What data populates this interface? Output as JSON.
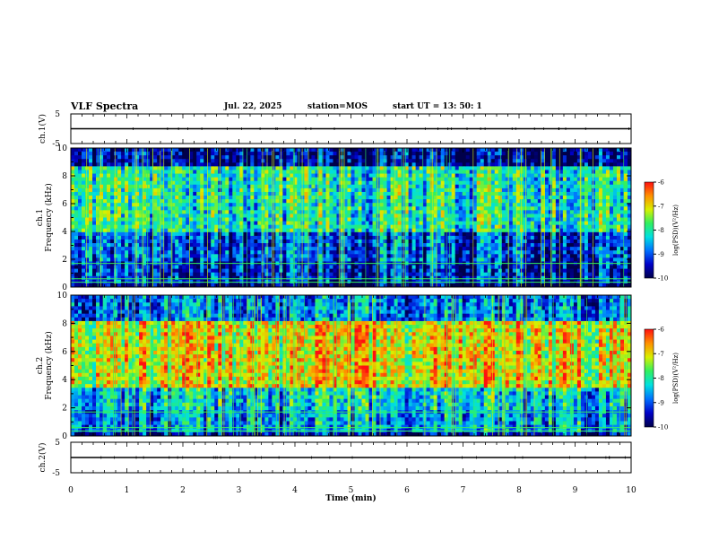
{
  "header": {
    "title": "VLF Spectra",
    "date": "Jul. 22, 2025",
    "station": "station=MOS",
    "start": "start UT = 13: 50: 1"
  },
  "colors": {
    "colormap": [
      "#00004a",
      "#0000c8",
      "#0070ff",
      "#00e0e0",
      "#30f060",
      "#d8f000",
      "#ff9000",
      "#ff1010",
      "#ffffff"
    ]
  },
  "chart_data": [
    {
      "type": "line",
      "panel": "waveform-ch1",
      "ylabel": "ch.1(V)",
      "ylim": [
        -5,
        5
      ],
      "yticks": [
        "5",
        "-5"
      ],
      "x": [
        0,
        10
      ],
      "values": [
        0,
        0
      ]
    },
    {
      "type": "heatmap",
      "panel": "spectrogram-ch1",
      "ylabel": "ch.1\nFrequency (kHz)",
      "xlim": [
        0,
        10
      ],
      "ylim": [
        0,
        10
      ],
      "yticks": [
        "10",
        "8",
        "6",
        "4",
        "2",
        "0"
      ],
      "colorbar": {
        "label": "log(PSD)(V²/Hz)",
        "range": [
          -10,
          -6
        ],
        "ticks": [
          "-6",
          "-7",
          "-8",
          "-9",
          "-10"
        ]
      },
      "bands": [
        {
          "fmin": 0,
          "fmax": 0.3,
          "level": -10
        },
        {
          "fmin": 0.3,
          "fmax": 1.8,
          "level": -9.3
        },
        {
          "fmin": 1.8,
          "fmax": 4,
          "level": -9.0
        },
        {
          "fmin": 4,
          "fmax": 8.8,
          "level": -8.0
        },
        {
          "fmin": 8.8,
          "fmax": 10,
          "level": -9.6
        }
      ],
      "lines_khz": [
        0.35,
        0.6,
        1.7
      ]
    },
    {
      "type": "heatmap",
      "panel": "spectrogram-ch2",
      "ylabel": "ch.2\nFrequency (kHz)",
      "xlim": [
        0,
        10
      ],
      "ylim": [
        0,
        10
      ],
      "yticks": [
        "10",
        "8",
        "6",
        "4",
        "2",
        "0"
      ],
      "colorbar": {
        "label": "log(PSD)(V²/Hz)",
        "range": [
          -10,
          -6
        ],
        "ticks": [
          "-6",
          "-7",
          "-8",
          "-9",
          "-10"
        ]
      },
      "bands": [
        {
          "fmin": 0,
          "fmax": 0.3,
          "level": -9.5
        },
        {
          "fmin": 0.3,
          "fmax": 1.8,
          "level": -8.6
        },
        {
          "fmin": 1.8,
          "fmax": 3.5,
          "level": -8.3
        },
        {
          "fmin": 3.5,
          "fmax": 8.2,
          "level": -7.0
        },
        {
          "fmin": 8.2,
          "fmax": 10,
          "level": -8.8
        }
      ],
      "lines_khz": [
        0.35,
        0.6,
        1.7
      ]
    },
    {
      "type": "line",
      "panel": "waveform-ch2",
      "ylabel": "ch.2(V)",
      "ylim": [
        -5,
        5
      ],
      "yticks": [
        "5",
        "-5"
      ],
      "x": [
        0,
        10
      ],
      "values": [
        0,
        0
      ]
    }
  ],
  "xaxis": {
    "label": "Time (min)",
    "ticks": [
      "0",
      "1",
      "2",
      "3",
      "4",
      "5",
      "6",
      "7",
      "8",
      "9",
      "10"
    ]
  }
}
